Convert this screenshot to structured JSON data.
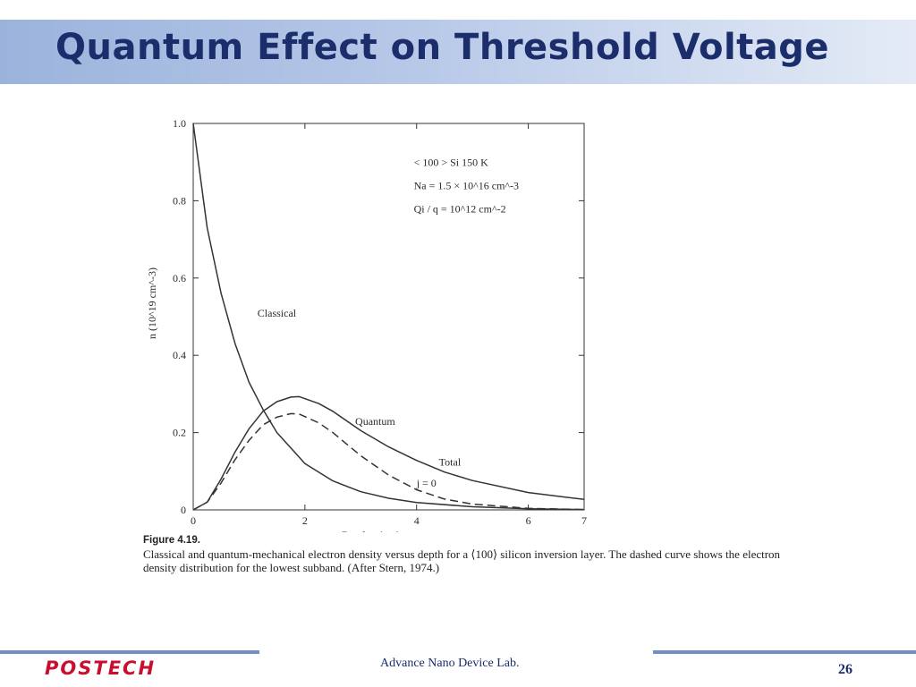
{
  "slide": {
    "title": "Quantum Effect on Threshold Voltage",
    "footer_lab": "Advance Nano Device Lab.",
    "logo": "POSTECH",
    "page_number": "26"
  },
  "colors": {
    "title": "#1b2d6b",
    "logo": "#c8102e",
    "accent_line": "#6f8fc6"
  },
  "figure": {
    "label": "Figure 4.19.",
    "caption": "Classical and quantum-mechanical electron density versus depth for a ⟨100⟩ silicon inversion layer. The dashed curve shows the electron density distribution for the lowest subband. (After Stern, 1974.)"
  },
  "chart_data": {
    "type": "line",
    "xlabel": "Depth x (nm)",
    "ylabel": "n (10^19 cm^-3)",
    "xlim": [
      0,
      7
    ],
    "ylim": [
      0,
      1.0
    ],
    "x_ticks": [
      "0",
      "2",
      "4",
      "6",
      "7"
    ],
    "x_tick_values": [
      0,
      2,
      4,
      6,
      7
    ],
    "y_ticks": [
      "0",
      "0.2",
      "0.4",
      "0.6",
      "0.8",
      "1.0"
    ],
    "y_tick_values": [
      0,
      0.2,
      0.4,
      0.6,
      0.8,
      1.0
    ],
    "grid": false,
    "annotations": [
      "< 100 > Si  150 K",
      "Na = 1.5 × 10^16 cm^-3",
      "Qi / q = 10^12 cm^-2"
    ],
    "series": [
      {
        "name": "Classical",
        "style": "solid",
        "x": [
          0,
          0.25,
          0.5,
          0.75,
          1.0,
          1.25,
          1.5,
          2.0,
          2.5,
          3.0,
          3.5,
          4.0,
          5.0,
          6.0,
          7.0
        ],
        "y": [
          1.0,
          0.73,
          0.56,
          0.43,
          0.33,
          0.26,
          0.2,
          0.12,
          0.075,
          0.047,
          0.03,
          0.019,
          0.008,
          0.003,
          0.001
        ]
      },
      {
        "name": "Total",
        "style": "solid",
        "x": [
          0,
          0.25,
          0.5,
          0.75,
          1.0,
          1.25,
          1.5,
          1.75,
          1.9,
          2.25,
          2.5,
          3.0,
          3.5,
          4.0,
          4.5,
          5.0,
          6.0,
          7.0
        ],
        "y": [
          0,
          0.02,
          0.08,
          0.15,
          0.21,
          0.255,
          0.28,
          0.292,
          0.293,
          0.275,
          0.255,
          0.205,
          0.163,
          0.128,
          0.098,
          0.076,
          0.045,
          0.027
        ]
      },
      {
        "name": "j = 0",
        "style": "dashed",
        "x": [
          0,
          0.25,
          0.5,
          0.75,
          1.0,
          1.25,
          1.5,
          1.75,
          1.9,
          2.25,
          2.5,
          3.0,
          3.5,
          4.0,
          4.5,
          5.0,
          6.0,
          7.0
        ],
        "y": [
          0,
          0.02,
          0.07,
          0.13,
          0.18,
          0.22,
          0.24,
          0.249,
          0.248,
          0.225,
          0.2,
          0.14,
          0.09,
          0.052,
          0.028,
          0.015,
          0.004,
          0.001
        ]
      }
    ],
    "curve_labels": [
      "Classical",
      "Quantum",
      "Total",
      "j = 0"
    ]
  }
}
